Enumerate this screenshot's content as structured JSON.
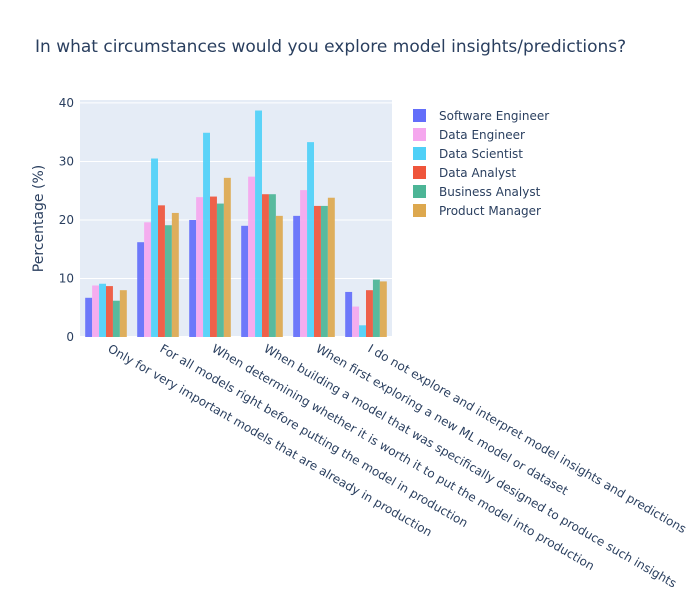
{
  "chart_data": {
    "type": "bar",
    "title": "In what circumstances would you explore model insights/predictions?",
    "xlabel": "",
    "ylabel": "Percentage (%)",
    "ylim": [
      0,
      40.5
    ],
    "yticks": [
      0,
      10,
      20,
      30,
      40
    ],
    "grid": true,
    "legend_position": "right",
    "categories": [
      "Only for very important models that are already in production",
      "For all models right before putting the model in production",
      "When determining whether it is worth it to put the model into production",
      "When building a model that was specifically designed to produce such insights",
      "When first exploring a new ML model or dataset",
      "I do not explore and interpret model insights and predictions"
    ],
    "series": [
      {
        "name": "Software Engineer",
        "color": "#636efa",
        "values": [
          6.7,
          16.2,
          20.0,
          19.0,
          20.7,
          7.7
        ]
      },
      {
        "name": "Data Engineer",
        "color": "#f5a7ee",
        "values": [
          8.8,
          19.6,
          23.9,
          27.4,
          25.1,
          5.2
        ]
      },
      {
        "name": "Data Scientist",
        "color": "#4fd0f7",
        "values": [
          9.1,
          30.5,
          34.9,
          38.7,
          33.3,
          2.0
        ]
      },
      {
        "name": "Data Analyst",
        "color": "#ef553b",
        "values": [
          8.7,
          22.5,
          24.0,
          24.4,
          22.4,
          8.0
        ]
      },
      {
        "name": "Business Analyst",
        "color": "#4cb596",
        "values": [
          6.2,
          19.1,
          22.8,
          24.4,
          22.4,
          9.8
        ]
      },
      {
        "name": "Product Manager",
        "color": "#dda84e",
        "values": [
          8.0,
          21.2,
          27.2,
          20.7,
          23.8,
          9.5
        ]
      }
    ]
  }
}
